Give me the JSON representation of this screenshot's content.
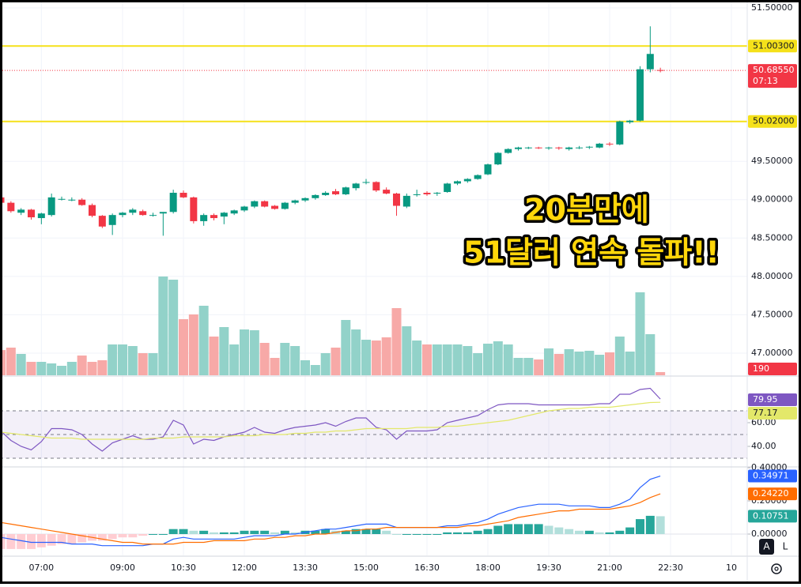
{
  "chart_data": [
    {
      "type": "candlestick",
      "x": [
        6,
        6.25,
        6.5,
        6.75,
        7,
        7.25,
        7.5,
        7.75,
        8,
        8.25,
        8.5,
        8.75,
        9,
        9.25,
        9.5,
        9.75,
        10,
        10.25,
        10.5,
        10.75,
        11,
        11.25,
        11.5,
        11.75,
        12,
        12.25,
        12.5,
        12.75,
        13,
        13.25,
        13.5,
        13.75,
        14,
        14.25,
        14.5,
        14.75,
        15,
        15.25,
        15.5,
        15.75,
        16,
        16.25,
        16.5,
        16.75,
        17,
        17.25,
        17.5,
        17.75,
        18,
        18.25,
        18.5,
        18.75,
        19,
        19.25,
        19.5,
        19.75,
        20,
        20.25,
        20.5,
        20.75,
        21,
        21.25,
        21.5,
        21.75,
        22,
        22.25
      ],
      "xlim": [
        5.9805,
        24.39
      ],
      "xticks": [
        {
          "value": 7,
          "label": "07:00"
        },
        {
          "value": 9,
          "label": "09:00"
        },
        {
          "value": 10.5,
          "label": "10:30"
        },
        {
          "value": 12,
          "label": "12:00"
        },
        {
          "value": 13.5,
          "label": "13:30"
        },
        {
          "value": 15,
          "label": "15:00"
        },
        {
          "value": 16.5,
          "label": "16:30"
        },
        {
          "value": 18,
          "label": "18:00"
        },
        {
          "value": 19.5,
          "label": "19:30"
        },
        {
          "value": 21,
          "label": "21:00"
        },
        {
          "value": 22.5,
          "label": "22:30"
        },
        {
          "value": 24,
          "label": "10"
        }
      ],
      "open": [
        49.03,
        48.96,
        48.83,
        48.87,
        48.76,
        48.8,
        49.01,
        49.0,
        49.0,
        48.93,
        48.79,
        48.67,
        48.8,
        48.83,
        48.85,
        48.8,
        48.82,
        48.84,
        49.09,
        49.03,
        48.72,
        48.8,
        48.78,
        48.82,
        48.86,
        48.91,
        48.98,
        48.92,
        48.88,
        48.96,
        48.99,
        49.02,
        49.06,
        49.11,
        49.07,
        49.15,
        49.22,
        49.23,
        49.13,
        49.08,
        48.91,
        49.07,
        49.09,
        49.08,
        49.1,
        49.21,
        49.24,
        49.27,
        49.33,
        49.46,
        49.61,
        49.66,
        49.68,
        49.68,
        49.67,
        49.68,
        49.66,
        49.68,
        49.68,
        49.68,
        49.73,
        49.72,
        50.01,
        50.03,
        50.7,
        50.69
      ],
      "high": [
        49.06,
        48.98,
        48.89,
        48.88,
        48.83,
        49.08,
        49.04,
        49.03,
        49.02,
        48.95,
        48.8,
        48.82,
        48.84,
        48.89,
        48.87,
        48.83,
        48.84,
        49.13,
        49.12,
        49.04,
        48.82,
        48.82,
        48.84,
        48.87,
        48.92,
        48.99,
        48.99,
        48.93,
        48.97,
        49.0,
        49.03,
        49.07,
        49.11,
        49.14,
        49.17,
        49.22,
        49.27,
        49.24,
        49.16,
        49.09,
        49.08,
        49.13,
        49.11,
        49.1,
        49.22,
        49.25,
        49.28,
        49.33,
        49.47,
        49.62,
        49.67,
        49.69,
        49.69,
        49.69,
        49.69,
        49.69,
        49.69,
        49.7,
        49.7,
        49.74,
        49.75,
        50.03,
        50.04,
        50.74,
        51.26,
        50.72
      ],
      "low": [
        48.95,
        48.83,
        48.8,
        48.74,
        48.68,
        48.78,
        48.99,
        48.98,
        48.92,
        48.77,
        48.63,
        48.54,
        48.77,
        48.8,
        48.79,
        48.78,
        48.53,
        48.82,
        49.02,
        48.69,
        48.66,
        48.73,
        48.68,
        48.8,
        48.84,
        48.89,
        48.9,
        48.87,
        48.87,
        48.94,
        48.97,
        49.0,
        49.05,
        49.06,
        49.06,
        49.12,
        49.2,
        49.1,
        49.07,
        48.79,
        48.89,
        49.04,
        49.05,
        49.05,
        49.09,
        49.19,
        49.22,
        49.26,
        49.32,
        49.45,
        49.6,
        49.64,
        49.66,
        49.66,
        49.65,
        49.65,
        49.64,
        49.66,
        49.66,
        49.67,
        49.7,
        49.71,
        49.99,
        50.02,
        50.66,
        50.66
      ],
      "close": [
        48.96,
        48.85,
        48.87,
        48.77,
        48.82,
        49.03,
        49.01,
        49.0,
        48.93,
        48.79,
        48.65,
        48.8,
        48.83,
        48.87,
        48.8,
        48.8,
        48.84,
        49.09,
        49.03,
        48.72,
        48.8,
        48.76,
        48.83,
        48.86,
        48.91,
        48.98,
        48.91,
        48.88,
        48.96,
        48.99,
        49.02,
        49.06,
        49.09,
        49.07,
        49.16,
        49.21,
        49.23,
        49.12,
        49.08,
        48.92,
        49.05,
        49.07,
        49.07,
        49.09,
        49.21,
        49.24,
        49.27,
        49.32,
        49.46,
        49.61,
        49.66,
        49.68,
        49.68,
        49.67,
        49.68,
        49.67,
        49.68,
        49.68,
        49.69,
        49.73,
        49.72,
        50.02,
        50.03,
        50.7,
        50.9,
        50.6855
      ],
      "up_color": "#089981",
      "down_color": "#f23645",
      "ylim": [
        46.711,
        51.603
      ],
      "yticks": [
        {
          "value": 51.5,
          "label": "51.50000"
        },
        {
          "value": 49.5,
          "label": "49.50000"
        },
        {
          "value": 49,
          "label": "49.00000"
        },
        {
          "value": 48.5,
          "label": "48.50000"
        },
        {
          "value": 48,
          "label": "48.00000"
        },
        {
          "value": 47.5,
          "label": "47.50000"
        },
        {
          "value": 47,
          "label": "47.00000"
        }
      ],
      "grid": true,
      "hlines": [
        {
          "value": 51.003,
          "label": "51.00300",
          "color": "#f5e11a"
        },
        {
          "value": 50.02,
          "label": "50.02000",
          "color": "#f5e11a"
        }
      ],
      "last_price": {
        "value": 50.6855,
        "label": "50.68550",
        "countdown": "07:13"
      },
      "volume": {
        "values": [
          1500,
          1645,
          1269,
          799,
          799,
          705,
          564,
          799,
          1175,
          799,
          893,
          1833,
          1833,
          1739,
          1316,
          1316,
          5875,
          5687,
          3337,
          3619,
          4136,
          2303,
          2867,
          1833,
          2726,
          2679,
          1927,
          1034,
          1927,
          1739,
          893,
          611,
          1316,
          1645,
          3290,
          2726,
          2115,
          2068,
          2256,
          3995,
          2914,
          2068,
          1833,
          1833,
          1833,
          1833,
          1739,
          1316,
          1880,
          2021,
          1833,
          1034,
          1034,
          940,
          1598,
          1269,
          1551,
          1410,
          1457,
          1222,
          1363,
          2303,
          1410,
          4935,
          2444,
          190
        ],
        "ylim": [
          0,
          22325
        ],
        "up_color": "#92d2c9",
        "down_color": "#f7a9a7"
      },
      "annotation": [
        "20분만에",
        "51달러 연속 돌파!!"
      ]
    },
    {
      "type": "line",
      "series": [
        {
          "color": "#7e57c2",
          "values": [
            53,
            45,
            40,
            37,
            44,
            55,
            55,
            54,
            50,
            42,
            36,
            43,
            46,
            49,
            46,
            46,
            48,
            62,
            58,
            42,
            46,
            45,
            48,
            50,
            52,
            56,
            52,
            51,
            54,
            56,
            57,
            58,
            60,
            57,
            61,
            64,
            64,
            56,
            54,
            46,
            53,
            53,
            53,
            54,
            60,
            62,
            64,
            66,
            71,
            75,
            76,
            76,
            76,
            75,
            75,
            75,
            75,
            75,
            75,
            76,
            76,
            84,
            84,
            88,
            89,
            79.95
          ]
        },
        {
          "color": "#e3e86a",
          "values": [
            52,
            51,
            50,
            49,
            48,
            47,
            47,
            47,
            46,
            46,
            46,
            46,
            46,
            46,
            46,
            47,
            47,
            47,
            48,
            48,
            48,
            48,
            48,
            49,
            49,
            49,
            50,
            50,
            50,
            51,
            51,
            52,
            52,
            53,
            53,
            54,
            55,
            55,
            55,
            55,
            55,
            56,
            56,
            56,
            57,
            57,
            58,
            59,
            60,
            61,
            62,
            64,
            66,
            68,
            70,
            71,
            72,
            72,
            73,
            73,
            73,
            74,
            75,
            76,
            77,
            77.17
          ]
        }
      ],
      "ylim": [
        23.33,
        98
      ],
      "yticks": [
        {
          "value": 60,
          "label": "60.00"
        },
        {
          "value": 40,
          "label": "40.00"
        }
      ],
      "levels": [
        70,
        50,
        30
      ]
    },
    {
      "type": "macd",
      "series": [
        {
          "type": "bar",
          "color": "#26a69a",
          "down_color": "#ff5252",
          "values": [
            -0.09,
            -0.09,
            -0.09,
            -0.09,
            -0.08,
            -0.07,
            -0.06,
            -0.06,
            -0.05,
            -0.04,
            -0.04,
            -0.03,
            -0.02,
            -0.02,
            -0.01,
            0,
            0,
            0.03,
            0.03,
            0.02,
            0.02,
            0.01,
            0.01,
            0.01,
            0.02,
            0.02,
            0.02,
            0.01,
            0.02,
            0.01,
            0.02,
            0.02,
            0.03,
            0.02,
            0.02,
            0.03,
            0.03,
            0.03,
            0.02,
            0,
            0,
            0,
            0,
            0,
            0.01,
            0.01,
            0.01,
            0.02,
            0.03,
            0.05,
            0.06,
            0.06,
            0.06,
            0.06,
            0.05,
            0.04,
            0.03,
            0.02,
            0.02,
            0.01,
            0.01,
            0.02,
            0.04,
            0.09,
            0.11,
            0.10751
          ]
        },
        {
          "type": "line",
          "color": "#2962ff",
          "values": [
            -0.02,
            -0.03,
            -0.04,
            -0.05,
            -0.05,
            -0.05,
            -0.05,
            -0.06,
            -0.06,
            -0.06,
            -0.07,
            -0.07,
            -0.07,
            -0.07,
            -0.07,
            -0.06,
            -0.06,
            -0.03,
            -0.02,
            -0.03,
            -0.03,
            -0.03,
            -0.03,
            -0.03,
            -0.02,
            -0.01,
            -0.01,
            -0.01,
            0,
            0,
            0.01,
            0.02,
            0.03,
            0.03,
            0.04,
            0.05,
            0.06,
            0.06,
            0.06,
            0.04,
            0.04,
            0.04,
            0.04,
            0.04,
            0.05,
            0.05,
            0.06,
            0.07,
            0.09,
            0.12,
            0.14,
            0.16,
            0.17,
            0.18,
            0.18,
            0.18,
            0.17,
            0.17,
            0.17,
            0.16,
            0.16,
            0.18,
            0.21,
            0.28,
            0.33,
            0.34971
          ]
        },
        {
          "type": "line",
          "color": "#ff6d00",
          "last_label": "0.24220",
          "values": [
            0.07,
            0.06,
            0.05,
            0.04,
            0.03,
            0.02,
            0.01,
            0,
            -0.01,
            -0.02,
            -0.03,
            -0.04,
            -0.05,
            -0.05,
            -0.06,
            -0.06,
            -0.06,
            -0.06,
            -0.05,
            -0.05,
            -0.05,
            -0.04,
            -0.04,
            -0.04,
            -0.04,
            -0.03,
            -0.03,
            -0.02,
            -0.02,
            -0.01,
            -0.01,
            0,
            0,
            0.01,
            0.02,
            0.02,
            0.03,
            0.03,
            0.04,
            0.04,
            0.04,
            0.04,
            0.04,
            0.04,
            0.04,
            0.04,
            0.05,
            0.05,
            0.06,
            0.07,
            0.08,
            0.1,
            0.11,
            0.12,
            0.13,
            0.14,
            0.14,
            0.15,
            0.15,
            0.15,
            0.15,
            0.16,
            0.17,
            0.19,
            0.22,
            0.2422
          ]
        }
      ],
      "ylim": [
        -0.1286,
        0.4
      ],
      "yticks": [
        {
          "value": 0.4,
          "label": "0.40000"
        },
        {
          "value": 0.2,
          "label": "0.20000"
        },
        {
          "value": 0,
          "label": "0.00000"
        }
      ]
    }
  ],
  "controls": [
    "A",
    "L"
  ]
}
